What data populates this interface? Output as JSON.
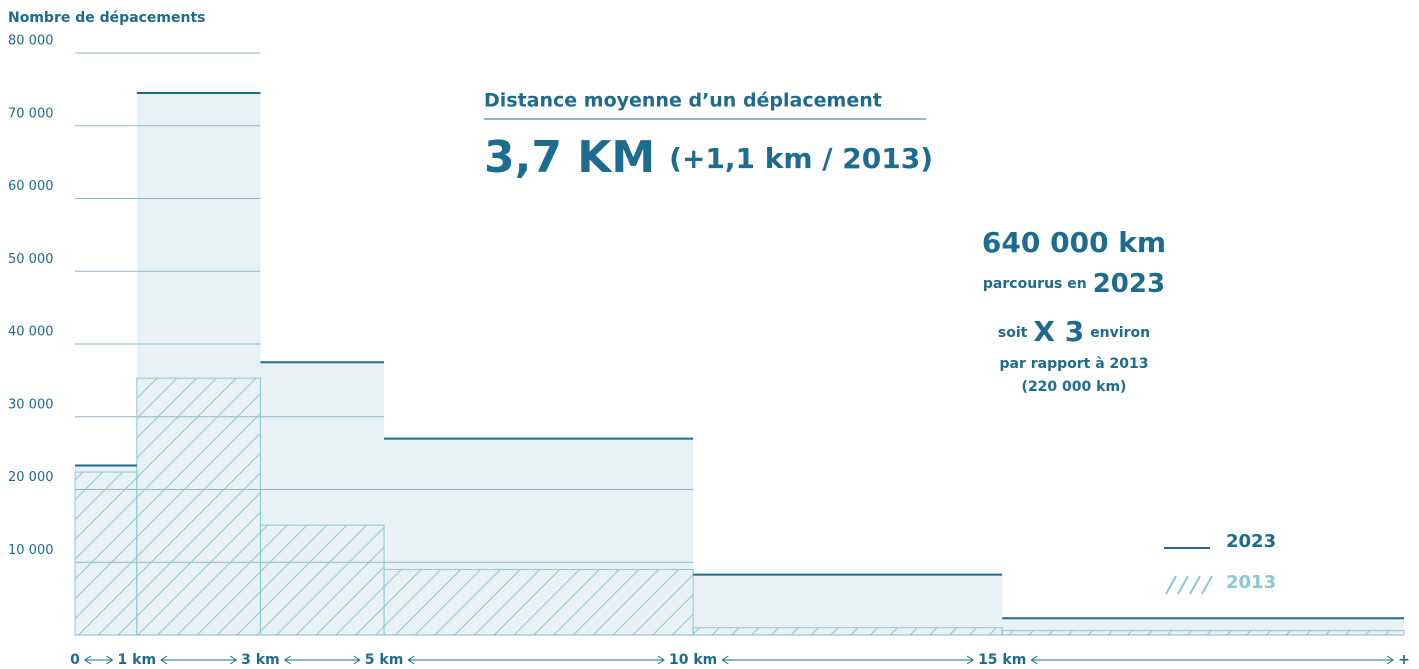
{
  "chart_data": {
    "type": "histogram",
    "y_label": "Nombre de dépacements",
    "bins": [
      0,
      1,
      3,
      5,
      10,
      15,
      21.5
    ],
    "xlim": [
      0,
      21.5
    ],
    "xticks": [
      0,
      {
        "value": 1,
        "label": "1 km"
      },
      {
        "value": 3,
        "label": "3 km"
      },
      {
        "value": 5,
        "label": "5 km"
      },
      {
        "value": 10,
        "label": "10 km"
      },
      {
        "value": 15,
        "label": "15 km"
      },
      {
        "value": 21.5,
        "label": "+"
      }
    ],
    "ylim": [
      0,
      80000
    ],
    "yticks": [
      {
        "value": 10000,
        "label": "10 000"
      },
      {
        "value": 20000,
        "label": "20 000"
      },
      {
        "value": 30000,
        "label": "30 000"
      },
      {
        "value": 40000,
        "label": "40 000"
      },
      {
        "value": 50000,
        "label": "50 000"
      },
      {
        "value": 60000,
        "label": "60 000"
      },
      {
        "value": 70000,
        "label": "70 000"
      },
      {
        "value": 80000,
        "label": "80 000"
      }
    ],
    "grid": true,
    "series": [
      {
        "name": "2023",
        "color": "#1d6b8e",
        "fill": "#e8f1f4",
        "values": [
          23300,
          74500,
          37500,
          27000,
          8300,
          2300
        ]
      },
      {
        "name": "2013",
        "color": "#8cc8d1",
        "values": [
          22400,
          35300,
          15100,
          9000,
          1000,
          600
        ]
      }
    ],
    "annotations": {
      "headline": "Distance moyenne d’un déplacement",
      "average": "3,7 KM",
      "average_change": "(+1,1 km / 2013)",
      "total": "640 000 km",
      "total_caption": "parcourus en",
      "total_year": "2023",
      "ratio_prefix": "soit",
      "ratio": "X 3",
      "ratio_suffix": "environ",
      "ratio_caption": "par rapport à 2013",
      "previous_total": "(220 000 km)"
    }
  }
}
